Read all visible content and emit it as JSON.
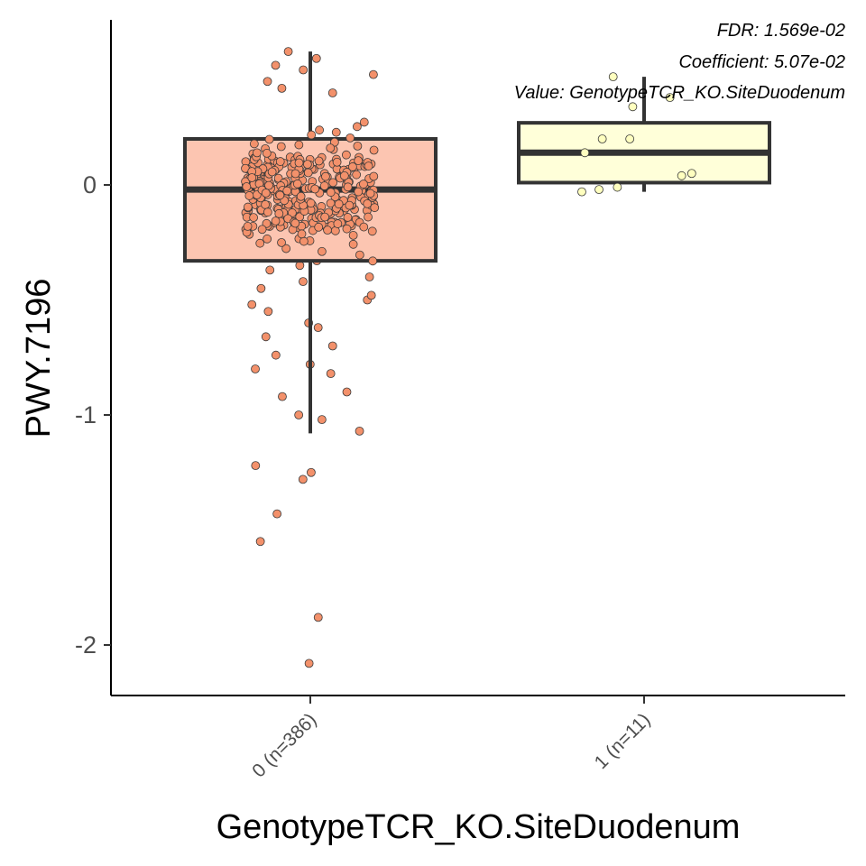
{
  "chart_data": {
    "type": "box",
    "xlabel": "GenotypeTCR_KO.SiteDuodenum",
    "ylabel": "PWY.7196",
    "ylim": [
      -2.2,
      0.73
    ],
    "yticks": [
      -2,
      -1,
      0
    ],
    "ytick_labels": [
      "-2",
      "-1",
      "0"
    ],
    "annotations": [
      "FDR: 1.569e-02",
      "Coefficient: 5.07e-02",
      "Value: GenotypeTCR_KO.SiteDuodenum"
    ],
    "groups": [
      {
        "label": "0 (n=386)",
        "color": "#fcc5b1",
        "point_color": "#f3916b",
        "n": 386,
        "box": {
          "whisker_low": -1.08,
          "q1": -0.33,
          "median": -0.02,
          "q3": 0.2,
          "whisker_high": 0.58
        },
        "points": [
          -2.08,
          -1.88,
          -1.55,
          -1.43,
          -1.28,
          -1.25,
          -1.22,
          -1.07,
          -1.02,
          -1.0,
          -0.92,
          -0.9,
          -0.82,
          -0.8,
          -0.78,
          -0.74,
          -0.7,
          -0.66,
          -0.62,
          -0.6,
          -0.55,
          -0.52,
          -0.5,
          -0.48,
          -0.45,
          -0.42,
          -0.4,
          -0.37,
          -0.35,
          -0.33,
          0.4,
          0.42,
          0.45,
          0.48,
          0.5,
          0.52,
          0.55,
          0.58
        ]
      },
      {
        "label": "1 (n=11)",
        "color": "#ffffd9",
        "point_color": "#ffffbf",
        "n": 11,
        "box": {
          "whisker_low": -0.03,
          "q1": 0.01,
          "median": 0.14,
          "q3": 0.27,
          "whisker_high": 0.47
        },
        "points": [
          0.47,
          0.38,
          0.34,
          0.2,
          0.2,
          0.14,
          0.05,
          0.04,
          -0.01,
          -0.02,
          -0.03
        ]
      }
    ]
  }
}
